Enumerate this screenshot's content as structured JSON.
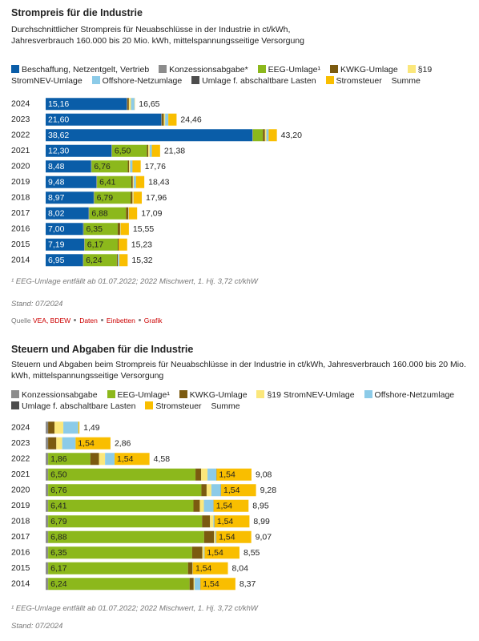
{
  "chart_data": [
    {
      "type": "stacked-bar-horizontal",
      "title": "Strompreis für die Industrie",
      "subtitle": [
        "Durchschnittlicher Strompreis für Neuabschlüsse in der Industrie in ct/kWh,",
        "Jahresverbrauch 160.000 bis 20 Mio. kWh, mittelspannungsseitige Versorgung"
      ],
      "categories": [
        "2024",
        "2023",
        "2022",
        "2021",
        "2020",
        "2019",
        "2018",
        "2017",
        "2016",
        "2015",
        "2014"
      ],
      "xlim": [
        0,
        44
      ],
      "series": [
        {
          "name": "Beschaffung, Netzentgelt, Vertrieb",
          "color": "#0a5da8",
          "values": [
            15.16,
            21.6,
            38.62,
            12.3,
            8.48,
            9.48,
            8.97,
            8.02,
            7.0,
            7.19,
            6.95
          ],
          "value_labels": [
            "15,16",
            "21,60",
            "38,62",
            "12,30",
            "8,48",
            "9,48",
            "8,97",
            "8,02",
            "7,00",
            "7,19",
            "6,95"
          ]
        },
        {
          "name": "Konzessionsabgabe*",
          "color": "#8c8c8c",
          "values": [
            0.11,
            0.11,
            0.11,
            0.11,
            0.11,
            0.11,
            0.11,
            0.11,
            0.11,
            0.11,
            0.11
          ]
        },
        {
          "name": "EEG-Umlage¹",
          "color": "#8cb81c",
          "values": [
            0,
            0,
            1.86,
            6.5,
            6.76,
            6.41,
            6.79,
            6.88,
            6.35,
            6.17,
            6.24
          ],
          "value_labels": [
            null,
            null,
            null,
            "6,50",
            "6,76",
            "6,41",
            "6,79",
            "6,88",
            "6,35",
            "6,17",
            "6,24"
          ]
        },
        {
          "name": "KWKG-Umlage",
          "color": "#7b5a10",
          "values": [
            0.28,
            0.36,
            0.38,
            0.25,
            0.23,
            0.28,
            0.35,
            0.44,
            0.45,
            0.2,
            0.18
          ]
        },
        {
          "name": "§19 StromNEV-Umlage",
          "color": "#fbe77b",
          "values": [
            0.39,
            0.26,
            0.27,
            0.28,
            0.21,
            0.18,
            0.15,
            0.06,
            0.06,
            0.02,
            0.04
          ]
        },
        {
          "name": "Offshore-Netzumlage",
          "color": "#8ccbe8",
          "values": [
            0.66,
            0.59,
            0.42,
            0.39,
            0.42,
            0.42,
            0.04,
            0.03,
            0.04,
            0,
            0.25
          ]
        },
        {
          "name": "Umlage f. abschaltbare Lasten",
          "color": "#4d4d4d",
          "values": [
            0,
            0,
            0,
            0.01,
            0.01,
            0.01,
            0.01,
            0.01,
            0,
            0,
            0.01
          ]
        },
        {
          "name": "Stromsteuer",
          "color": "#f9be00",
          "values": [
            0.05,
            1.54,
            1.54,
            1.54,
            1.54,
            1.54,
            1.54,
            1.54,
            1.54,
            1.54,
            1.54
          ]
        }
      ],
      "sum": {
        "name": "Summe",
        "values": [
          16.65,
          24.46,
          43.2,
          21.38,
          17.76,
          18.43,
          17.96,
          17.09,
          15.55,
          15.23,
          15.32
        ],
        "value_labels": [
          "16,65",
          "24,46",
          "43,20",
          "21,38",
          "17,76",
          "18,43",
          "17,96",
          "17,09",
          "15,55",
          "15,23",
          "15,32"
        ]
      },
      "footnote": "¹ EEG-Umlage entfällt ab 01.07.2022; 2022 Mischwert, 1. Hj. 3,72 ct/khW",
      "stand": "Stand: 07/2024"
    },
    {
      "type": "stacked-bar-horizontal",
      "title": "Steuern und Abgaben für die Industrie",
      "subtitle": [
        "Steuern und Abgaben beim Strompreis für Neuabschlüsse in der Industrie in ct/kWh, Jahresverbrauch 160.000 bis 20 Mio. kWh, mittelspannungsseitige Versorgung"
      ],
      "categories": [
        "2024",
        "2023",
        "2022",
        "2021",
        "2020",
        "2019",
        "2018",
        "2017",
        "2016",
        "2015",
        "2014"
      ],
      "xlim": [
        0,
        10
      ],
      "series": [
        {
          "name": "Konzessionsabgabe",
          "color": "#8c8c8c",
          "values": [
            0.11,
            0.11,
            0.11,
            0.11,
            0.11,
            0.11,
            0.11,
            0.11,
            0.11,
            0.11,
            0.11
          ]
        },
        {
          "name": "EEG-Umlage¹",
          "color": "#8cb81c",
          "values": [
            0,
            0,
            1.86,
            6.5,
            6.76,
            6.41,
            6.79,
            6.88,
            6.35,
            6.17,
            6.24
          ],
          "value_labels": [
            null,
            null,
            "1,86",
            "6,50",
            "6,76",
            "6,41",
            "6,79",
            "6,88",
            "6,35",
            "6,17",
            "6,24"
          ]
        },
        {
          "name": "KWKG-Umlage",
          "color": "#7b5a10",
          "values": [
            0.28,
            0.36,
            0.38,
            0.25,
            0.23,
            0.28,
            0.35,
            0.44,
            0.45,
            0.2,
            0.18
          ]
        },
        {
          "name": "§19 StromNEV-Umlage",
          "color": "#fbe77b",
          "values": [
            0.39,
            0.26,
            0.27,
            0.28,
            0.21,
            0.18,
            0.15,
            0.06,
            0.06,
            0.02,
            0.04
          ]
        },
        {
          "name": "Offshore-Netzumlage",
          "color": "#8ccbe8",
          "values": [
            0.66,
            0.59,
            0.42,
            0.39,
            0.42,
            0.42,
            0.04,
            0.03,
            0.04,
            0,
            0.25
          ]
        },
        {
          "name": "Umlage f. abschaltbare Lasten",
          "color": "#4d4d4d",
          "values": [
            0,
            0,
            0,
            0.01,
            0.01,
            0.01,
            0.01,
            0.01,
            0,
            0,
            0.01
          ]
        },
        {
          "name": "Stromsteuer",
          "color": "#f9be00",
          "values": [
            0.05,
            1.54,
            1.54,
            1.54,
            1.54,
            1.54,
            1.54,
            1.54,
            1.54,
            1.54,
            1.54
          ],
          "value_labels": [
            null,
            "1,54",
            "1,54",
            "1,54",
            "1,54",
            "1,54",
            "1,54",
            "1,54",
            "1,54",
            "1,54",
            "1,54"
          ]
        }
      ],
      "sum": {
        "name": "Summe",
        "values": [
          1.49,
          2.86,
          4.58,
          9.08,
          9.28,
          8.95,
          8.99,
          9.07,
          8.55,
          8.04,
          8.37
        ],
        "value_labels": [
          "1,49",
          "2,86",
          "4,58",
          "9,08",
          "9,28",
          "8,95",
          "8,99",
          "9,07",
          "8,55",
          "8,04",
          "8,37"
        ]
      },
      "footnote": "¹ EEG-Umlage entfällt ab 01.07.2022; 2022 Mischwert, 1. Hj. 3,72 ct/khW",
      "stand": "Stand: 07/2024"
    }
  ],
  "source": {
    "label": "Quelle",
    "text": "VEA, BDEW",
    "links": [
      "Daten",
      "Einbetten",
      "Grafik"
    ]
  }
}
